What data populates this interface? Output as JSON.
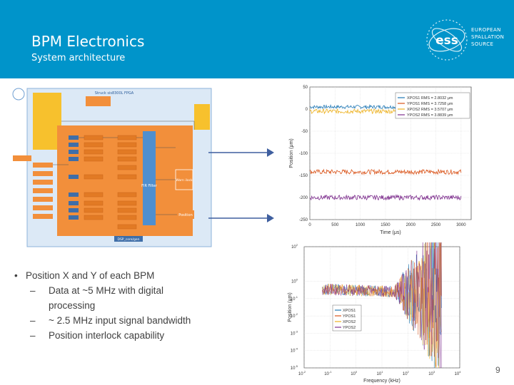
{
  "slide": {
    "title": "BPM Electronics",
    "subtitle": "System architecture",
    "page_number": "9"
  },
  "logo": {
    "mark": "ess",
    "line1": "EUROPEAN",
    "line2": "SPALLATION",
    "line3": "SOURCE"
  },
  "colors": {
    "header_blue": "#0094ca",
    "diagram_orange": "#f28f3b",
    "diagram_blue": "#4f8fcf",
    "diagram_yellow": "#f7c12d",
    "xpos1": "#1f77b4",
    "ypos1": "#d95319",
    "xpos2": "#edb120",
    "ypos2": "#7e2f8e",
    "arrow_blue": "#3f5f9f"
  },
  "bullets": {
    "main": "Position X and Y of each BPM",
    "sub": [
      "Data at ~5 MHz with digital processing",
      "~ 2.5 MHz input signal bandwidth",
      "Position interlock capability"
    ]
  },
  "diagram": {
    "title": "Struck sis8300L FPGA",
    "fir_label": "FIR Filter",
    "warn_label": "Warn ilock",
    "position_label": "Position",
    "footer": "DSP_core/gen"
  },
  "chart_data": [
    {
      "type": "line",
      "xlabel": "Time (μs)",
      "ylabel": "Position (μm)",
      "xlim": [
        0,
        3200
      ],
      "ylim": [
        -250,
        50
      ],
      "xticks": [
        0,
        500,
        1000,
        1500,
        2000,
        2500,
        3000
      ],
      "yticks": [
        50,
        0,
        -50,
        -100,
        -150,
        -200,
        -250
      ],
      "grid": true,
      "legend_position": "top-right",
      "series": [
        {
          "name": "XPOS1 RMS = 2.8032 μm",
          "mean": 5,
          "rms": 2.8032
        },
        {
          "name": "YPOS1 RMS = 3.7258 μm",
          "mean": -142,
          "rms": 3.7258
        },
        {
          "name": "XPOS2 RMS = 3.5707 μm",
          "mean": -5,
          "rms": 3.5707
        },
        {
          "name": "YPOS2 RMS = 3.8839 μm",
          "mean": -200,
          "rms": 3.8839
        }
      ]
    },
    {
      "type": "line",
      "xlabel": "Frequency (kHz)",
      "ylabel": "Position (μm)",
      "xscale": "log",
      "yscale": "log",
      "xlim": [
        0.01,
        10000
      ],
      "ylim": [
        1e-05,
        100
      ],
      "xtick_exponents": [
        "-2",
        "-1",
        "0",
        "1",
        "2",
        "3",
        "4"
      ],
      "ytick_exponents": [
        "2",
        "0",
        "-1",
        "-2",
        "-3",
        "-4",
        "-5"
      ],
      "grid": true,
      "legend_position": "center-left",
      "series": [
        {
          "name": "XPOS1"
        },
        {
          "name": "YPOS1"
        },
        {
          "name": "XPOS2"
        },
        {
          "name": "YPOS2"
        }
      ]
    }
  ]
}
